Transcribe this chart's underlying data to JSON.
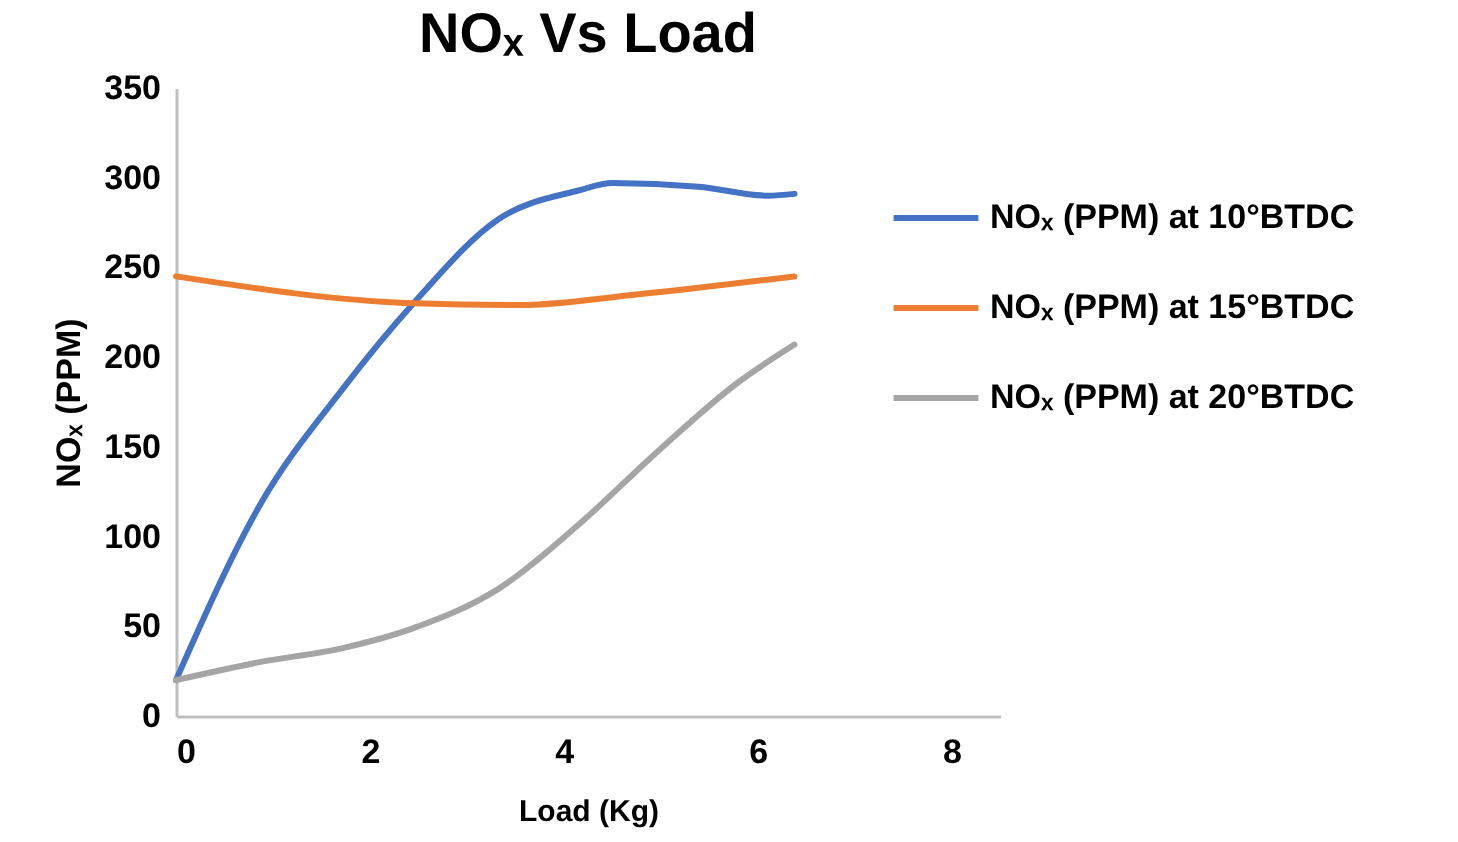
{
  "chart_data": {
    "type": "line",
    "title": "NOₓ Vs Load",
    "xlabel": "Load (Kg)",
    "ylabel": "NOₓ (PPM)",
    "xlim": [
      0,
      8.5
    ],
    "xticks": [
      0,
      2,
      4,
      6,
      8
    ],
    "ylim": [
      0,
      350
    ],
    "yticks": [
      0,
      50,
      100,
      150,
      200,
      250,
      300,
      350
    ],
    "grid": false,
    "legend": "right",
    "marker": "none",
    "line_style": "solid",
    "series": [
      {
        "name": "NOₓ (PPM) at 10°BTDC",
        "color": "#4472c4",
        "x": [
          0,
          0.86,
          1.73,
          2.45,
          3.33,
          4.16,
          4.5,
          5.39,
          6.11,
          6.38
        ],
        "values": [
          20,
          117,
          183,
          230,
          277,
          293,
          297,
          295,
          290,
          291
        ]
      },
      {
        "name": "NOₓ (PPM) at 15°BTDC",
        "color": "#ed7d31",
        "x": [
          0,
          2.45,
          3.54,
          4.77,
          6.38
        ],
        "values": [
          245,
          230,
          229,
          235,
          245
        ]
      },
      {
        "name": "NOₓ (PPM) at 20°BTDC",
        "color": "#a5a5a5",
        "x": [
          0,
          0.86,
          1.73,
          2.45,
          3.33,
          4.16,
          4.98,
          5.8,
          6.38
        ],
        "values": [
          20,
          30,
          38,
          49,
          71,
          107,
          148,
          186,
          207
        ]
      }
    ]
  }
}
